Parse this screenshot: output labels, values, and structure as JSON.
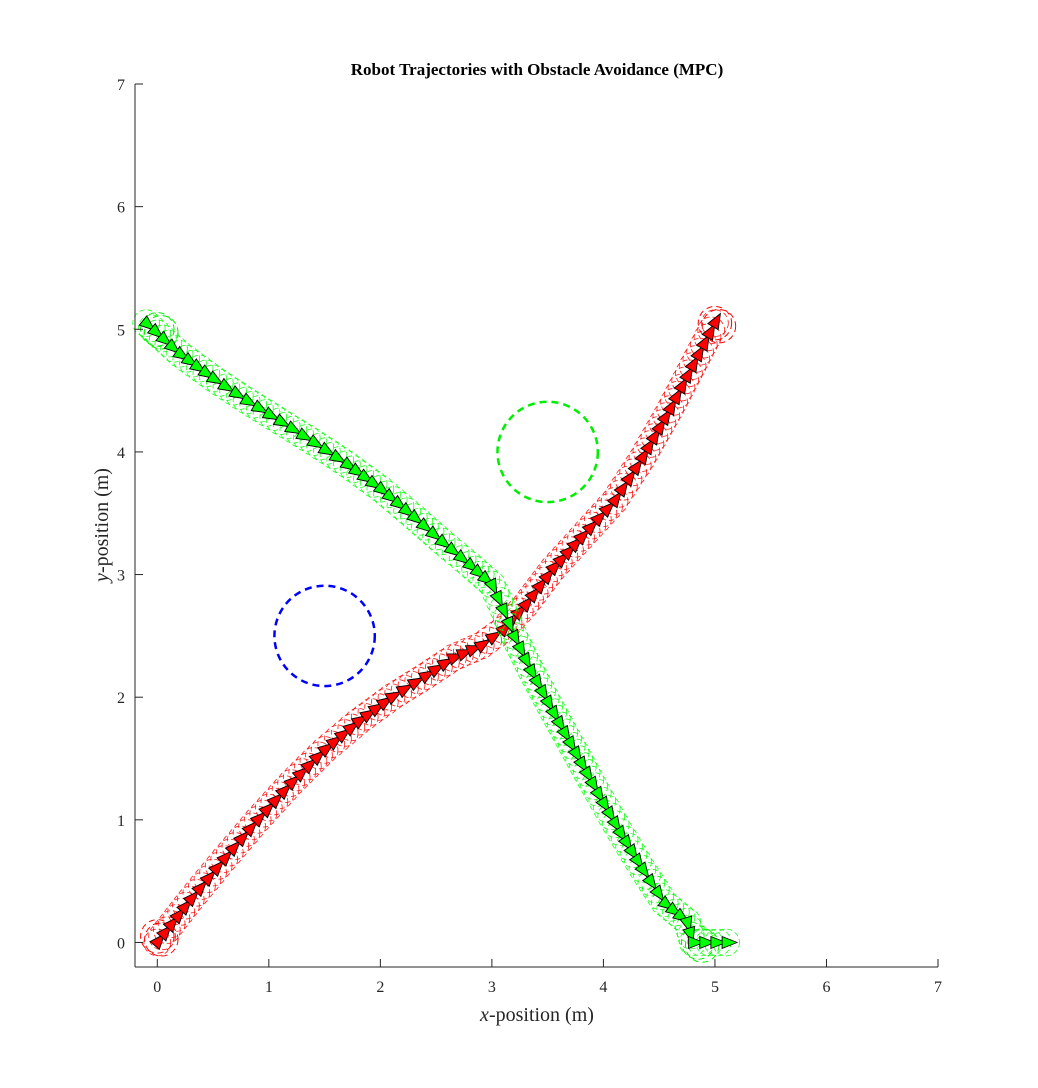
{
  "chart_data": {
    "type": "line",
    "title": "Robot Trajectories with Obstacle Avoidance (MPC)",
    "xlabel_var": "x",
    "xlabel_rest": "-position (m)",
    "ylabel_var": "y",
    "ylabel_rest": "-position (m)",
    "xlim": [
      -0.2,
      7
    ],
    "ylim": [
      -0.2,
      7
    ],
    "xticks": [
      "0",
      "1",
      "2",
      "3",
      "4",
      "5",
      "6",
      "7"
    ],
    "yticks": [
      "0",
      "1",
      "2",
      "3",
      "4",
      "5",
      "6",
      "7"
    ],
    "grid": false,
    "series": [
      {
        "color": "#ff0000",
        "robot_radius": 0.12,
        "points": [
          [
            0.0,
            0.0
          ],
          [
            0.3,
            0.35
          ],
          [
            0.6,
            0.68
          ],
          [
            0.9,
            1.0
          ],
          [
            1.2,
            1.3
          ],
          [
            1.5,
            1.57
          ],
          [
            1.8,
            1.8
          ],
          [
            2.1,
            2.0
          ],
          [
            2.4,
            2.17
          ],
          [
            2.65,
            2.32
          ],
          [
            2.9,
            2.42
          ],
          [
            3.1,
            2.55
          ],
          [
            3.3,
            2.75
          ],
          [
            3.55,
            3.05
          ],
          [
            3.8,
            3.3
          ],
          [
            4.1,
            3.6
          ],
          [
            4.35,
            3.95
          ],
          [
            4.6,
            4.35
          ],
          [
            4.8,
            4.7
          ],
          [
            5.0,
            5.05
          ]
        ]
      },
      {
        "color": "#00ff00",
        "robot_radius": 0.12,
        "points": [
          [
            -0.1,
            5.05
          ],
          [
            0.2,
            4.8
          ],
          [
            0.5,
            4.6
          ],
          [
            0.8,
            4.42
          ],
          [
            1.1,
            4.25
          ],
          [
            1.4,
            4.08
          ],
          [
            1.7,
            3.9
          ],
          [
            2.0,
            3.7
          ],
          [
            2.3,
            3.47
          ],
          [
            2.55,
            3.27
          ],
          [
            2.8,
            3.08
          ],
          [
            3.0,
            2.92
          ],
          [
            3.1,
            2.72
          ],
          [
            3.2,
            2.5
          ],
          [
            3.35,
            2.22
          ],
          [
            3.55,
            1.88
          ],
          [
            3.75,
            1.55
          ],
          [
            3.95,
            1.22
          ],
          [
            4.15,
            0.9
          ],
          [
            4.35,
            0.6
          ],
          [
            4.55,
            0.32
          ],
          [
            4.75,
            0.17
          ],
          [
            4.8,
            0.0
          ],
          [
            5.1,
            0.0
          ]
        ]
      }
    ],
    "obstacles": [
      {
        "center": [
          1.5,
          2.5
        ],
        "radius": 0.45,
        "color": "#0000ff"
      },
      {
        "center": [
          3.5,
          4.0
        ],
        "radius": 0.45,
        "color": "#00ee00"
      }
    ],
    "goal_circles": [
      {
        "center": [
          0.0,
          0.05
        ],
        "radius": 0.15,
        "color": "#ff0000"
      },
      {
        "center": [
          5.0,
          5.05
        ],
        "radius": 0.15,
        "color": "#ff0000"
      },
      {
        "center": [
          0.0,
          5.0
        ],
        "radius": 0.15,
        "color": "#00ee00"
      },
      {
        "center": [
          4.85,
          0.0
        ],
        "radius": 0.15,
        "color": "#00ee00"
      }
    ]
  }
}
